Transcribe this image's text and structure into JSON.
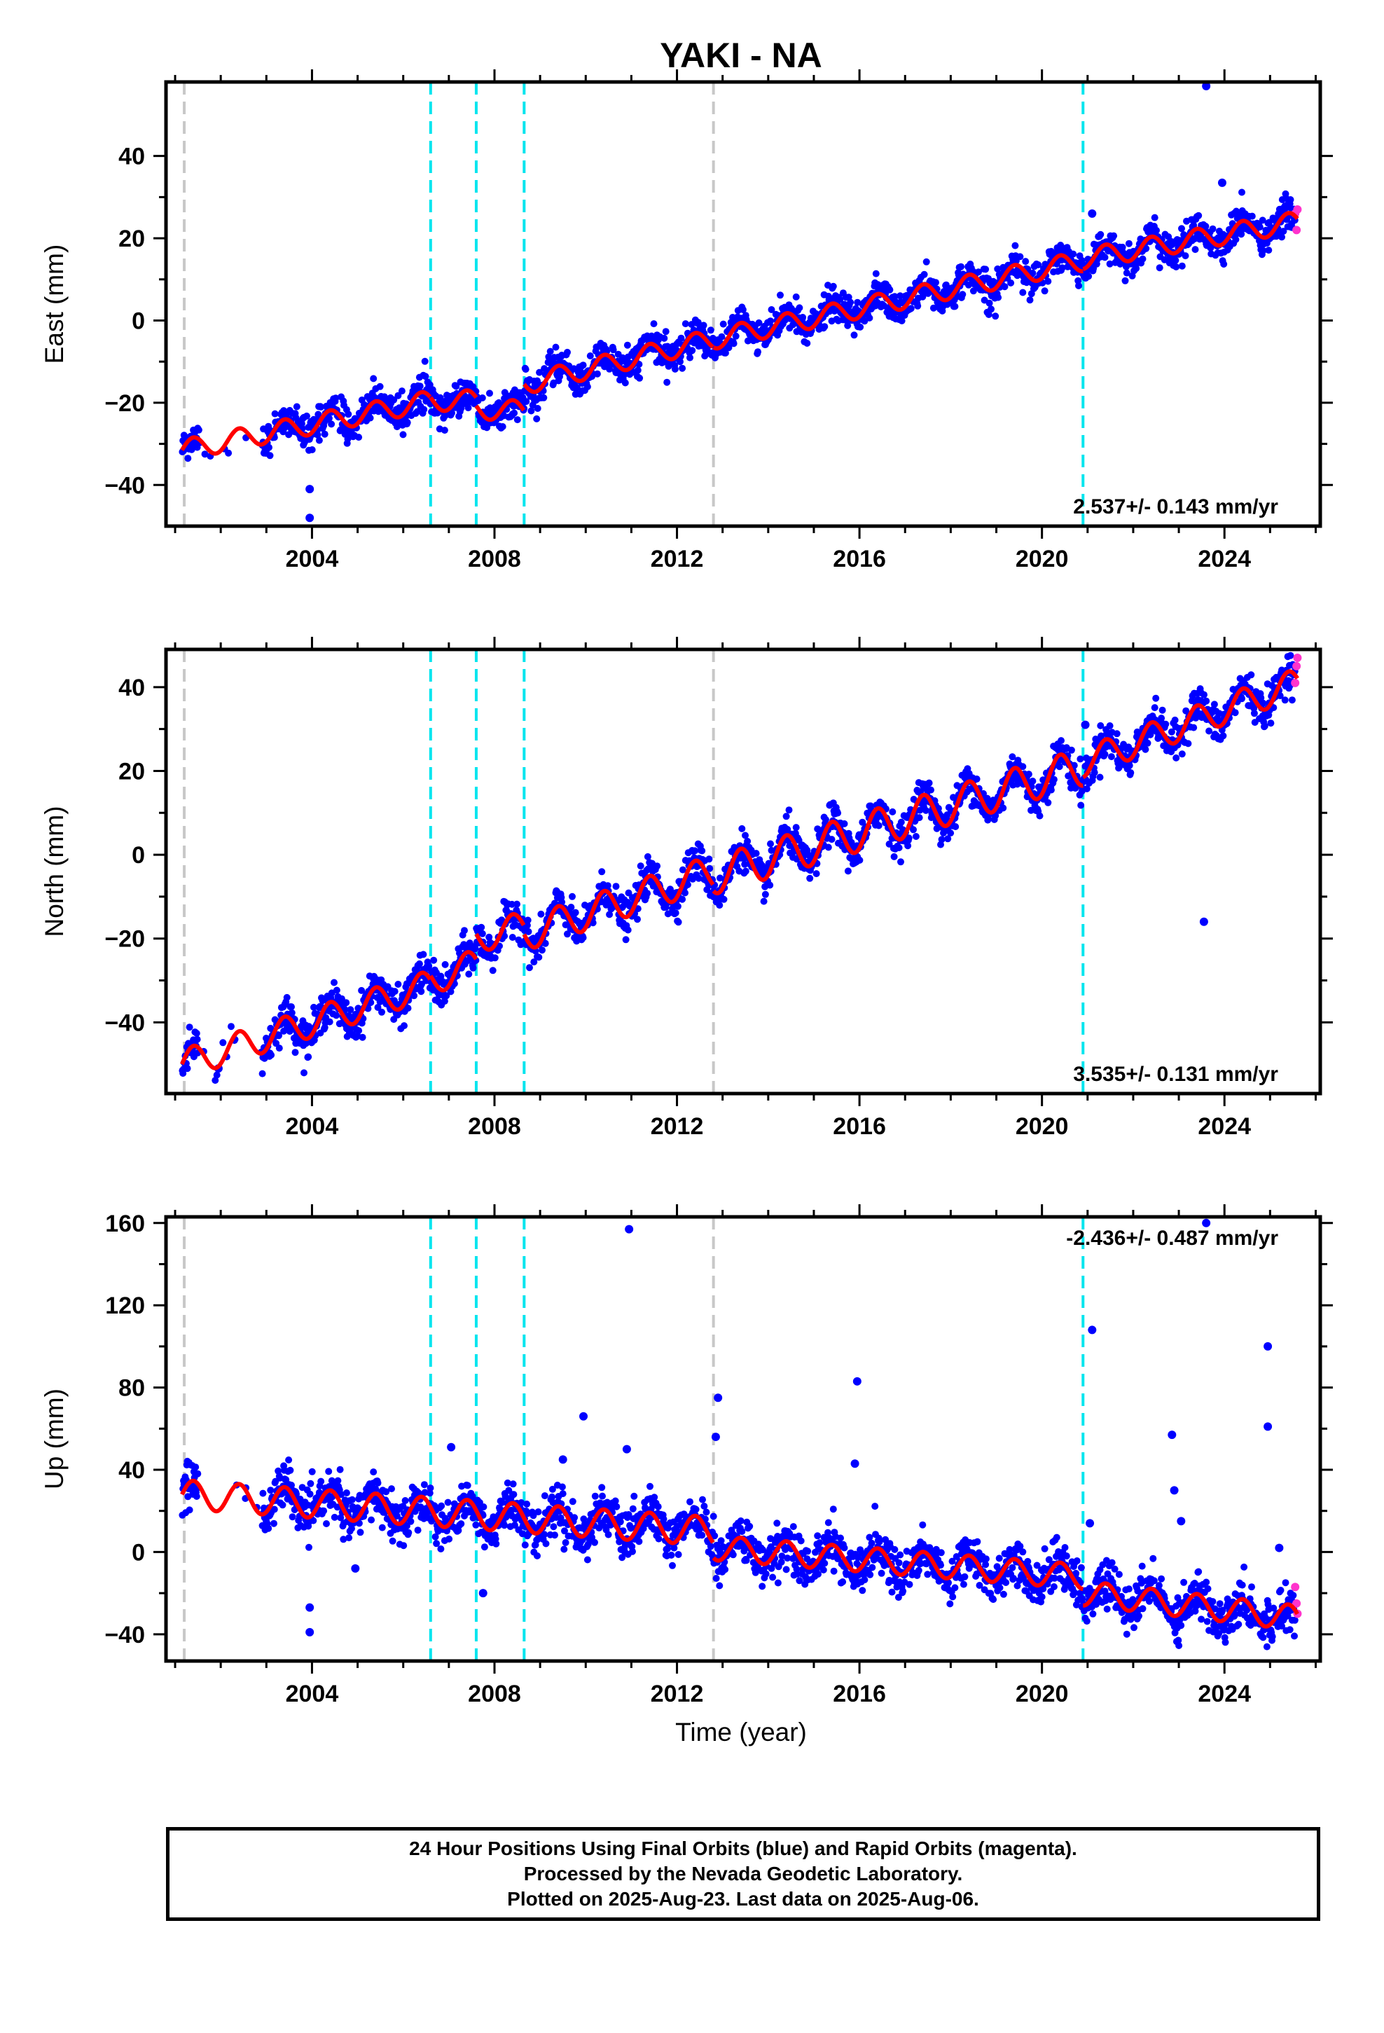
{
  "title": "YAKI - NA",
  "xlabel": "Time (year)",
  "caption": {
    "line1": "24 Hour Positions Using Final Orbits (blue) and Rapid Orbits (magenta).",
    "line2": "Processed by the Nevada Geodetic Laboratory.",
    "line3": "Plotted on 2025-Aug-23. Last data on 2025-Aug-06."
  },
  "colors": {
    "final_orbits": "#0000ff",
    "rapid_orbits": "#ff33cc",
    "model_fit": "#ff0000",
    "equipment_change": "#00e5ee",
    "other_event": "#c8c8c8"
  },
  "chart_data": [
    {
      "type": "scatter",
      "ylabel": "East (mm)",
      "xlim": [
        2000.8,
        2026.1
      ],
      "ylim": [
        -50,
        58
      ],
      "xticks": [
        2004,
        2008,
        2012,
        2016,
        2020,
        2024
      ],
      "yticks": [
        -40,
        -20,
        0,
        20,
        40
      ],
      "rate": "2.537+/- 0.143 mm/yr",
      "data_span": [
        2001.1,
        2025.6
      ],
      "cyan_lines": [
        2006.6,
        2007.6,
        2008.65,
        2020.9
      ],
      "gray_lines": [
        2001.2,
        2012.8
      ],
      "fit_segments": [
        {
          "x": [
            2001.15,
            2006.6
          ],
          "y": [
            -31.5,
            -19.5
          ],
          "amp": 2.5
        },
        {
          "x": [
            2006.6,
            2007.6
          ],
          "y": [
            -19.5,
            -19.5
          ],
          "amp": 2.5
        },
        {
          "x": [
            2007.6,
            2008.65
          ],
          "y": [
            -21.5,
            -22.0
          ],
          "amp": 2.5
        },
        {
          "x": [
            2008.65,
            2012.8
          ],
          "y": [
            -15.5,
            -4.5
          ],
          "amp": 2.5
        },
        {
          "x": [
            2012.8,
            2020.9
          ],
          "y": [
            -4.5,
            14.5
          ],
          "amp": 2.5
        },
        {
          "x": [
            2020.9,
            2025.6
          ],
          "y": [
            15.0,
            24.0
          ],
          "amp": 2.5
        }
      ],
      "gaps": [
        [
          2001.5,
          2002.9
        ]
      ],
      "outliers": [
        [
          2003.95,
          -41
        ],
        [
          2003.95,
          -48
        ],
        [
          2023.6,
          57
        ],
        [
          2023.95,
          33.5
        ],
        [
          2021.1,
          26
        ]
      ],
      "rapid": [
        [
          2025.55,
          26
        ],
        [
          2025.58,
          22
        ],
        [
          2025.6,
          27
        ]
      ]
    },
    {
      "type": "scatter",
      "ylabel": "North (mm)",
      "xlim": [
        2000.8,
        2026.1
      ],
      "ylim": [
        -57,
        49
      ],
      "xticks": [
        2004,
        2008,
        2012,
        2016,
        2020,
        2024
      ],
      "yticks": [
        -40,
        -20,
        0,
        20,
        40
      ],
      "rate": "3.535+/- 0.131 mm/yr",
      "data_span": [
        2001.1,
        2025.6
      ],
      "cyan_lines": [
        2006.6,
        2007.6,
        2008.65,
        2020.9
      ],
      "gray_lines": [
        2001.2,
        2012.8
      ],
      "fit_segments": [
        {
          "x": [
            2001.15,
            2006.6
          ],
          "y": [
            -50,
            -31
          ],
          "amp": 3.5
        },
        {
          "x": [
            2006.6,
            2007.6
          ],
          "y": [
            -30,
            -26
          ],
          "amp": 3.5
        },
        {
          "x": [
            2007.6,
            2008.65
          ],
          "y": [
            -20,
            -17
          ],
          "amp": 3.5
        },
        {
          "x": [
            2008.65,
            2012.8
          ],
          "y": [
            -19,
            -4
          ],
          "amp": 4.0
        },
        {
          "x": [
            2012.8,
            2020.9
          ],
          "y": [
            -5,
            21
          ],
          "amp": 4.5
        },
        {
          "x": [
            2020.9,
            2025.6
          ],
          "y": [
            22,
            41
          ],
          "amp": 3.5
        }
      ],
      "gaps": [
        [
          2001.5,
          2002.9
        ]
      ],
      "outliers": [
        [
          2023.55,
          -16
        ],
        [
          2001.95,
          -51
        ],
        [
          2020.95,
          31
        ]
      ],
      "rapid": [
        [
          2025.55,
          41
        ],
        [
          2025.58,
          45
        ],
        [
          2025.6,
          47
        ]
      ]
    },
    {
      "type": "scatter",
      "ylabel": "Up (mm)",
      "xlim": [
        2000.8,
        2026.1
      ],
      "ylim": [
        -53,
        163
      ],
      "xticks": [
        2004,
        2008,
        2012,
        2016,
        2020,
        2024
      ],
      "yticks": [
        -40,
        0,
        40,
        80,
        120,
        160
      ],
      "rate": "-2.436+/- 0.487 mm/yr",
      "data_span": [
        2001.1,
        2025.6
      ],
      "cyan_lines": [
        2006.6,
        2007.6,
        2008.65,
        2020.9
      ],
      "gray_lines": [
        2001.2,
        2012.8
      ],
      "fit_segments": [
        {
          "x": [
            2001.15,
            2012.8
          ],
          "y": [
            28,
            10
          ],
          "amp": 7
        },
        {
          "x": [
            2012.8,
            2020.9
          ],
          "y": [
            2,
            -12
          ],
          "amp": 6
        },
        {
          "x": [
            2020.9,
            2025.6
          ],
          "y": [
            -20,
            -32
          ],
          "amp": 6
        }
      ],
      "gaps": [
        [
          2001.5,
          2002.9
        ]
      ],
      "outliers": [
        [
          2010.95,
          157
        ],
        [
          2023.6,
          160
        ],
        [
          2021.1,
          108
        ],
        [
          2024.95,
          100
        ],
        [
          2012.9,
          75
        ],
        [
          2015.95,
          83
        ],
        [
          2012.85,
          56
        ],
        [
          2022.85,
          57
        ],
        [
          2024.95,
          61
        ],
        [
          2009.95,
          66
        ],
        [
          2007.05,
          51
        ],
        [
          2009.5,
          45
        ],
        [
          2010.9,
          50
        ],
        [
          2015.9,
          43
        ],
        [
          2003.95,
          -27
        ],
        [
          2003.95,
          -39
        ],
        [
          2004.95,
          -8
        ],
        [
          2007.75,
          -20
        ],
        [
          2022.9,
          30
        ],
        [
          2023.05,
          15
        ],
        [
          2025.2,
          2
        ],
        [
          2021.05,
          14
        ]
      ],
      "rapid": [
        [
          2025.55,
          -17
        ],
        [
          2025.58,
          -25
        ],
        [
          2025.6,
          -30
        ]
      ]
    }
  ]
}
